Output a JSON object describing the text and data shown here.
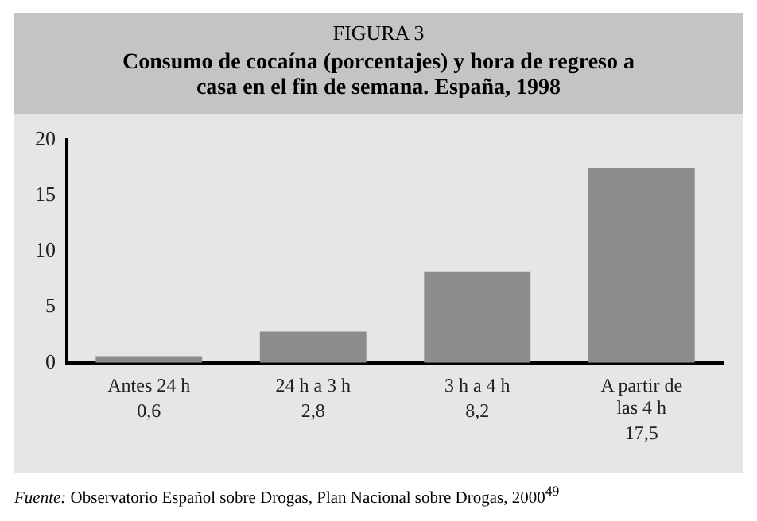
{
  "chart_data": {
    "type": "bar",
    "title": "FIGURA 3",
    "subtitle": "Consumo de cocaína (porcentajes) y hora de regreso a casa en el fin de semana. España, 1998",
    "categories": [
      "Antes 24 h",
      "24 h a 3 h",
      "3 h a 4 h",
      "A partir de las 4 h"
    ],
    "values": [
      0.6,
      2.8,
      8.2,
      17.5
    ],
    "value_labels": [
      "0,6",
      "2,8",
      "8,2",
      "17,5"
    ],
    "color": "#8c8c8c",
    "ylim": [
      0,
      20
    ],
    "yticks": [
      0,
      5,
      10,
      15,
      20
    ],
    "grid": false,
    "legend": false,
    "annotations": [
      "Fuente: Observatorio Español sobre Drogas, Plan Nacional sobre Drogas, 2000$^{49}$"
    ]
  }
}
